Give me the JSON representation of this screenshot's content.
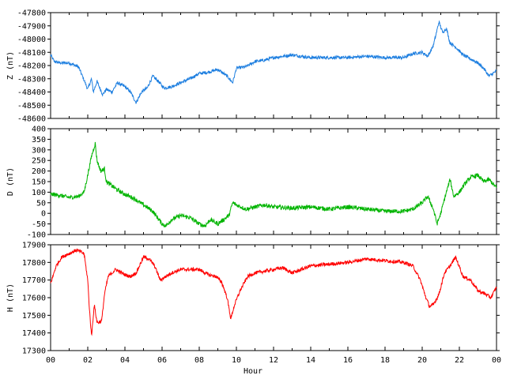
{
  "chart_data": [
    {
      "type": "line",
      "ylabel": "Z (nT)",
      "ylim": [
        -48600,
        -47800
      ],
      "yticks": [
        -47800,
        -47900,
        -48000,
        -48100,
        -48200,
        -48300,
        -48400,
        -48500,
        -48600
      ],
      "color": "#1e7fe0",
      "noise": 12,
      "series": [
        {
          "x": [
            0,
            0.2,
            0.5,
            1.0,
            1.5,
            1.8,
            2.0,
            2.2,
            2.3,
            2.5,
            2.8,
            3.0,
            3.3,
            3.6,
            4.0,
            4.3,
            4.6,
            4.9,
            5.2,
            5.5,
            5.8,
            6.1,
            6.5,
            7.0,
            7.5,
            8.0,
            8.5,
            9.0,
            9.5,
            9.8,
            10.0,
            10.5,
            11.0,
            11.5,
            12.0,
            12.5,
            13.0,
            14.0,
            15.0,
            16.0,
            17.0,
            18.0,
            19.0,
            19.5,
            20.0,
            20.3,
            20.6,
            20.9,
            21.1,
            21.3,
            21.5,
            21.8,
            22.2,
            22.6,
            23.0,
            23.3,
            23.6,
            24.0
          ],
          "y": [
            -48120,
            -48170,
            -48180,
            -48180,
            -48210,
            -48310,
            -48380,
            -48300,
            -48400,
            -48320,
            -48420,
            -48380,
            -48400,
            -48330,
            -48360,
            -48400,
            -48480,
            -48400,
            -48370,
            -48280,
            -48320,
            -48370,
            -48360,
            -48330,
            -48300,
            -48260,
            -48250,
            -48230,
            -48280,
            -48330,
            -48220,
            -48210,
            -48170,
            -48160,
            -48140,
            -48130,
            -48120,
            -48140,
            -48140,
            -48140,
            -48130,
            -48140,
            -48140,
            -48110,
            -48100,
            -48130,
            -48050,
            -47870,
            -47950,
            -47920,
            -48030,
            -48060,
            -48120,
            -48150,
            -48180,
            -48220,
            -48280,
            -48240
          ]
        }
      ]
    },
    {
      "type": "line",
      "ylabel": "D (nT)",
      "ylim": [
        -100,
        400
      ],
      "yticks": [
        400,
        350,
        300,
        250,
        200,
        150,
        100,
        50,
        0,
        -50,
        -100
      ],
      "color": "#00b400",
      "noise": 10,
      "series": [
        {
          "x": [
            0,
            0.5,
            1.0,
            1.5,
            1.8,
            2.0,
            2.2,
            2.4,
            2.5,
            2.7,
            2.9,
            3.0,
            3.3,
            3.6,
            4.0,
            4.5,
            5.0,
            5.5,
            6.0,
            6.2,
            6.5,
            7.0,
            7.5,
            8.0,
            8.3,
            8.6,
            9.0,
            9.3,
            9.6,
            9.8,
            10.0,
            10.5,
            11.0,
            11.5,
            12.0,
            13.0,
            14.0,
            15.0,
            16.0,
            17.0,
            18.0,
            19.0,
            19.5,
            20.0,
            20.3,
            20.6,
            20.8,
            21.0,
            21.3,
            21.5,
            21.7,
            22.0,
            22.3,
            22.6,
            23.0,
            23.3,
            23.6,
            24.0
          ],
          "y": [
            90,
            85,
            75,
            80,
            100,
            180,
            270,
            330,
            250,
            200,
            210,
            150,
            130,
            110,
            90,
            70,
            40,
            10,
            -50,
            -60,
            -30,
            -10,
            -20,
            -50,
            -60,
            -30,
            -50,
            -30,
            -10,
            50,
            40,
            20,
            30,
            40,
            30,
            25,
            30,
            20,
            30,
            20,
            10,
            10,
            20,
            50,
            80,
            20,
            -50,
            0,
            100,
            160,
            80,
            100,
            140,
            170,
            180,
            150,
            160,
            120
          ]
        }
      ]
    },
    {
      "type": "line",
      "ylabel": "H (nT)",
      "xlabel": "Hour",
      "ylim": [
        17300,
        17900
      ],
      "yticks": [
        17900,
        17800,
        17700,
        17600,
        17500,
        17400,
        17300
      ],
      "xlim": [
        0,
        24
      ],
      "xticks": [
        "00",
        "02",
        "04",
        "06",
        "08",
        "10",
        "12",
        "14",
        "16",
        "18",
        "20",
        "22",
        "00"
      ],
      "color": "#ff0000",
      "noise": 10,
      "series": [
        {
          "x": [
            0,
            0.3,
            0.6,
            1.0,
            1.4,
            1.8,
            2.0,
            2.1,
            2.2,
            2.35,
            2.5,
            2.6,
            2.75,
            2.9,
            3.1,
            3.5,
            4.0,
            4.3,
            4.6,
            5.0,
            5.3,
            5.6,
            5.9,
            6.2,
            6.5,
            7.0,
            7.5,
            8.0,
            8.5,
            8.9,
            9.2,
            9.5,
            9.7,
            9.9,
            10.2,
            10.6,
            11.0,
            11.5,
            12.0,
            12.5,
            13.0,
            14.0,
            15.0,
            16.0,
            17.0,
            18.0,
            19.0,
            19.5,
            19.9,
            20.2,
            20.4,
            20.6,
            20.9,
            21.2,
            21.5,
            21.8,
            22.2,
            22.6,
            23.0,
            23.4,
            23.7,
            24.0
          ],
          "y": [
            17680,
            17780,
            17830,
            17850,
            17870,
            17850,
            17700,
            17520,
            17380,
            17560,
            17460,
            17460,
            17470,
            17620,
            17720,
            17760,
            17730,
            17720,
            17740,
            17830,
            17820,
            17780,
            17700,
            17720,
            17740,
            17760,
            17760,
            17760,
            17730,
            17720,
            17690,
            17600,
            17480,
            17560,
            17640,
            17720,
            17740,
            17750,
            17760,
            17770,
            17740,
            17780,
            17790,
            17800,
            17820,
            17810,
            17800,
            17780,
            17700,
            17600,
            17550,
            17560,
            17620,
            17740,
            17780,
            17830,
            17720,
            17700,
            17640,
            17620,
            17600,
            17660
          ]
        }
      ]
    }
  ]
}
